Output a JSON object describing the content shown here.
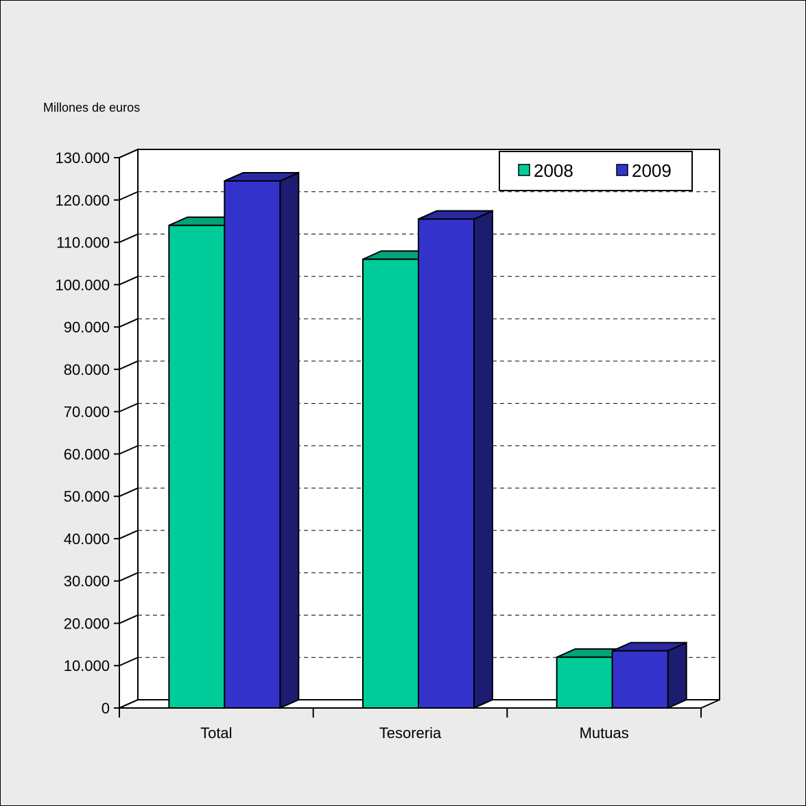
{
  "chart_data": {
    "type": "bar",
    "title": "",
    "xlabel": "",
    "ylabel": "Millones de euros",
    "categories": [
      "Total",
      "Tesoreria",
      "Mutuas"
    ],
    "series": [
      {
        "name": "2008",
        "values": [
          114000,
          106000,
          12000
        ],
        "color": "#00cc99"
      },
      {
        "name": "2009",
        "values": [
          124500,
          115500,
          13500
        ],
        "color": "#3333cc"
      }
    ],
    "ylim": [
      0,
      130000
    ],
    "yticks": [
      "0",
      "10.000",
      "20.000",
      "30.000",
      "40.000",
      "50.000",
      "60.000",
      "70.000",
      "80.000",
      "90.000",
      "100.000",
      "110.000",
      "120.000",
      "130.000"
    ],
    "grid": true,
    "legend_position": "top-right",
    "three_d": true
  }
}
